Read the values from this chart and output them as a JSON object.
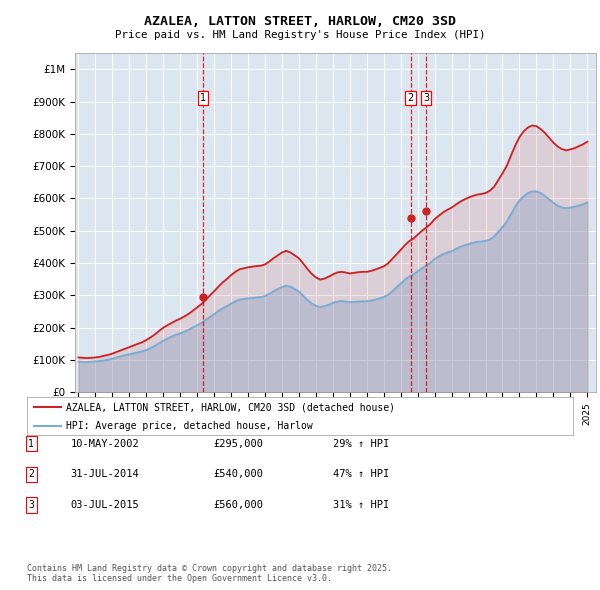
{
  "title": "AZALEA, LATTON STREET, HARLOW, CM20 3SD",
  "subtitle": "Price paid vs. HM Land Registry's House Price Index (HPI)",
  "legend_line1": "AZALEA, LATTON STREET, HARLOW, CM20 3SD (detached house)",
  "legend_line2": "HPI: Average price, detached house, Harlow",
  "footnote": "Contains HM Land Registry data © Crown copyright and database right 2025.\nThis data is licensed under the Open Government Licence v3.0.",
  "transactions": [
    {
      "num": 1,
      "date": "10-MAY-2002",
      "price": 295000,
      "pct": "29%",
      "dir": "↑",
      "year_x": 2002.36
    },
    {
      "num": 2,
      "date": "31-JUL-2014",
      "price": 540000,
      "pct": "47%",
      "dir": "↑",
      "year_x": 2014.58
    },
    {
      "num": 3,
      "date": "03-JUL-2015",
      "price": 560000,
      "pct": "31%",
      "dir": "↑",
      "year_x": 2015.5
    }
  ],
  "hpi_color": "#7aadd4",
  "price_color": "#cc2222",
  "dashed_line_color": "#dd0000",
  "plot_bg_color": "#dce6f1",
  "ylim": [
    0,
    1050000
  ],
  "yticks": [
    0,
    100000,
    200000,
    300000,
    400000,
    500000,
    600000,
    700000,
    800000,
    900000,
    1000000
  ],
  "ytick_labels": [
    "£0",
    "£100K",
    "£200K",
    "£300K",
    "£400K",
    "£500K",
    "£600K",
    "£700K",
    "£800K",
    "£900K",
    "£1M"
  ],
  "xlim_start": 1994.8,
  "xlim_end": 2025.5,
  "hpi_years": [
    1995.0,
    1995.25,
    1995.5,
    1995.75,
    1996.0,
    1996.25,
    1996.5,
    1996.75,
    1997.0,
    1997.25,
    1997.5,
    1997.75,
    1998.0,
    1998.25,
    1998.5,
    1998.75,
    1999.0,
    1999.25,
    1999.5,
    1999.75,
    2000.0,
    2000.25,
    2000.5,
    2000.75,
    2001.0,
    2001.25,
    2001.5,
    2001.75,
    2002.0,
    2002.25,
    2002.5,
    2002.75,
    2003.0,
    2003.25,
    2003.5,
    2003.75,
    2004.0,
    2004.25,
    2004.5,
    2004.75,
    2005.0,
    2005.25,
    2005.5,
    2005.75,
    2006.0,
    2006.25,
    2006.5,
    2006.75,
    2007.0,
    2007.25,
    2007.5,
    2007.75,
    2008.0,
    2008.25,
    2008.5,
    2008.75,
    2009.0,
    2009.25,
    2009.5,
    2009.75,
    2010.0,
    2010.25,
    2010.5,
    2010.75,
    2011.0,
    2011.25,
    2011.5,
    2011.75,
    2012.0,
    2012.25,
    2012.5,
    2012.75,
    2013.0,
    2013.25,
    2013.5,
    2013.75,
    2014.0,
    2014.25,
    2014.5,
    2014.75,
    2015.0,
    2015.25,
    2015.5,
    2015.75,
    2016.0,
    2016.25,
    2016.5,
    2016.75,
    2017.0,
    2017.25,
    2017.5,
    2017.75,
    2018.0,
    2018.25,
    2018.5,
    2018.75,
    2019.0,
    2019.25,
    2019.5,
    2019.75,
    2020.0,
    2020.25,
    2020.5,
    2020.75,
    2021.0,
    2021.25,
    2021.5,
    2021.75,
    2022.0,
    2022.25,
    2022.5,
    2022.75,
    2023.0,
    2023.25,
    2023.5,
    2023.75,
    2024.0,
    2024.25,
    2024.5,
    2024.75,
    2025.0
  ],
  "hpi_values": [
    95000,
    94000,
    94000,
    95000,
    96000,
    97000,
    99000,
    101000,
    104000,
    108000,
    112000,
    115000,
    118000,
    121000,
    124000,
    127000,
    131000,
    137000,
    144000,
    152000,
    160000,
    167000,
    173000,
    178000,
    183000,
    188000,
    194000,
    201000,
    208000,
    215000,
    224000,
    233000,
    242000,
    252000,
    260000,
    267000,
    275000,
    282000,
    287000,
    289000,
    291000,
    292000,
    294000,
    295000,
    298000,
    305000,
    313000,
    320000,
    326000,
    330000,
    327000,
    320000,
    312000,
    299000,
    286000,
    275000,
    268000,
    264000,
    267000,
    271000,
    277000,
    281000,
    283000,
    281000,
    279000,
    280000,
    281000,
    282000,
    282000,
    284000,
    287000,
    291000,
    295000,
    302000,
    313000,
    325000,
    337000,
    349000,
    358000,
    365000,
    375000,
    384000,
    392000,
    401000,
    413000,
    421000,
    428000,
    433000,
    437000,
    444000,
    450000,
    455000,
    459000,
    463000,
    466000,
    467000,
    469000,
    473000,
    482000,
    497000,
    512000,
    528000,
    552000,
    575000,
    594000,
    607000,
    617000,
    622000,
    622000,
    617000,
    608000,
    597000,
    587000,
    578000,
    572000,
    570000,
    572000,
    575000,
    578000,
    582000,
    588000
  ],
  "price_years": [
    1995.0,
    1995.25,
    1995.5,
    1995.75,
    1996.0,
    1996.25,
    1996.5,
    1996.75,
    1997.0,
    1997.25,
    1997.5,
    1997.75,
    1998.0,
    1998.25,
    1998.5,
    1998.75,
    1999.0,
    1999.25,
    1999.5,
    1999.75,
    2000.0,
    2000.25,
    2000.5,
    2000.75,
    2001.0,
    2001.25,
    2001.5,
    2001.75,
    2002.0,
    2002.25,
    2002.5,
    2002.75,
    2003.0,
    2003.25,
    2003.5,
    2003.75,
    2004.0,
    2004.25,
    2004.5,
    2004.75,
    2005.0,
    2005.25,
    2005.5,
    2005.75,
    2006.0,
    2006.25,
    2006.5,
    2006.75,
    2007.0,
    2007.25,
    2007.5,
    2007.75,
    2008.0,
    2008.25,
    2008.5,
    2008.75,
    2009.0,
    2009.25,
    2009.5,
    2009.75,
    2010.0,
    2010.25,
    2010.5,
    2010.75,
    2011.0,
    2011.25,
    2011.5,
    2011.75,
    2012.0,
    2012.25,
    2012.5,
    2012.75,
    2013.0,
    2013.25,
    2013.5,
    2013.75,
    2014.0,
    2014.25,
    2014.5,
    2014.75,
    2015.0,
    2015.25,
    2015.5,
    2015.75,
    2016.0,
    2016.25,
    2016.5,
    2016.75,
    2017.0,
    2017.25,
    2017.5,
    2017.75,
    2018.0,
    2018.25,
    2018.5,
    2018.75,
    2019.0,
    2019.25,
    2019.5,
    2019.75,
    2020.0,
    2020.25,
    2020.5,
    2020.75,
    2021.0,
    2021.25,
    2021.5,
    2021.75,
    2022.0,
    2022.25,
    2022.5,
    2022.75,
    2023.0,
    2023.25,
    2023.5,
    2023.75,
    2024.0,
    2024.25,
    2024.5,
    2024.75,
    2025.0
  ],
  "price_values": [
    108000,
    107000,
    106000,
    107000,
    108000,
    110000,
    113000,
    116000,
    120000,
    125000,
    130000,
    135000,
    140000,
    145000,
    150000,
    155000,
    162000,
    170000,
    179000,
    190000,
    200000,
    208000,
    215000,
    222000,
    228000,
    235000,
    243000,
    253000,
    263000,
    273000,
    286000,
    300000,
    313000,
    327000,
    340000,
    351000,
    363000,
    373000,
    381000,
    384000,
    387000,
    389000,
    391000,
    392000,
    396000,
    405000,
    415000,
    424000,
    433000,
    438000,
    433000,
    424000,
    415000,
    399000,
    382000,
    367000,
    356000,
    349000,
    352000,
    358000,
    365000,
    371000,
    373000,
    371000,
    368000,
    370000,
    372000,
    373000,
    373000,
    376000,
    380000,
    385000,
    390000,
    399000,
    413000,
    427000,
    441000,
    456000,
    468000,
    476000,
    488000,
    500000,
    510000,
    521000,
    536000,
    547000,
    557000,
    565000,
    572000,
    581000,
    590000,
    597000,
    603000,
    608000,
    612000,
    614000,
    617000,
    624000,
    636000,
    657000,
    678000,
    701000,
    733000,
    764000,
    790000,
    808000,
    820000,
    826000,
    824000,
    815000,
    803000,
    788000,
    773000,
    761000,
    753000,
    749000,
    752000,
    756000,
    762000,
    768000,
    776000
  ],
  "xtick_years": [
    1995,
    1996,
    1997,
    1998,
    1999,
    2000,
    2001,
    2002,
    2003,
    2004,
    2005,
    2006,
    2007,
    2008,
    2009,
    2010,
    2011,
    2012,
    2013,
    2014,
    2015,
    2016,
    2017,
    2018,
    2019,
    2020,
    2021,
    2022,
    2023,
    2024,
    2025
  ]
}
